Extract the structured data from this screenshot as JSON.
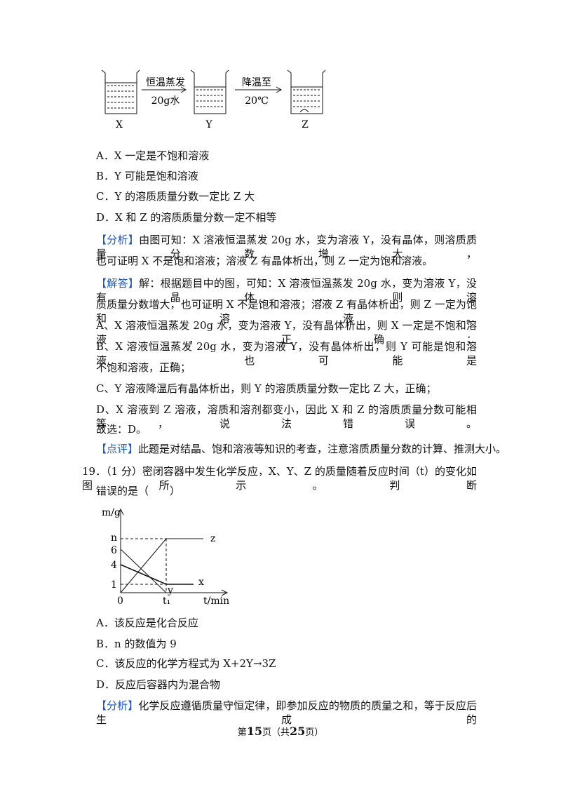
{
  "figure1": {
    "beakers": [
      "X",
      "Y",
      "Z"
    ],
    "arrows": [
      {
        "top": "恒温蒸发",
        "bottom": "20g水"
      },
      {
        "top": "降温至",
        "bottom": "20℃"
      }
    ]
  },
  "options18": [
    "A．X 一定是不饱和溶液",
    "B．Y 可能是饱和溶液",
    "C．Y 的溶质质量分数一定比 Z 大",
    "D．X 和 Z 的溶质质量分数一定不相等"
  ],
  "analysis18": {
    "tag": "【分析】",
    "lines": [
      "由图可知：X 溶液恒温蒸发 20g 水，变为溶液 Y，没有晶体，则溶质质量分数增大，",
      "也可证明 X 不是饱和溶液；溶液 Z 有晶体析出，则 Z 一定为饱和溶液。"
    ]
  },
  "answer18": {
    "tag": "【解答】",
    "lines": [
      "解：根据题目中的图，可知：X 溶液恒温蒸发 20g 水，变为溶液 Y，没有晶体，则溶",
      "质质量分数增大，也可证明 X 不是饱和溶液；溶液 Z 有晶体析出，则 Z 一定为饱和溶液。",
      "A、X 溶液恒温蒸发 20g 水，变为溶液 Y，没有晶体析出，则 X 一定是不饱和溶液，正确；",
      "B、X 溶液恒温蒸发 20g 水，变为溶液 Y，没有晶体析出，则 Y 可能是饱和溶液，也可能是",
      "不饱和溶液，正确；",
      "C、Y 溶液降温后有晶体析出，则 Y 的溶质质量分数一定比 Z 大，正确；",
      "D、X 溶液到 Z 溶液，溶质和溶剂都变小，因此 X 和 Z 的溶质质量分数可能相等，说法错误。",
      "故选：D。"
    ]
  },
  "comment18": {
    "tag": "【点评】",
    "text": "此题是对结晶、饱和溶液等知识的考查，注意溶质质量分数的计算、推测大小。"
  },
  "question19": {
    "lines": [
      "19．（1 分）密闭容器中发生化学反应，X、Y、Z 的质量随着反应时间（t）的变化如图所示。判断",
      "错误的是（　　）"
    ]
  },
  "figure2": {
    "y_label": "m/g",
    "x_label": "t/min",
    "y_ticks": [
      "n",
      "6",
      "4",
      "1"
    ],
    "origin": "0",
    "x_tick": "t₁",
    "curves": [
      "z",
      "x",
      "y"
    ]
  },
  "options19": [
    "A．该反应是化合反应",
    "B．n 的数值为 9",
    "C．该反应的化学方程式为 X+2Y→3Z",
    "D．反应后容器内为混合物"
  ],
  "analysis19": {
    "tag": "【分析】",
    "text": "化学反应遵循质量守恒定律，即参加反应的物质的质量之和，等于反应后生成的"
  },
  "footer": {
    "parts": [
      "第",
      "15",
      "页（共",
      "25",
      "页）"
    ]
  }
}
